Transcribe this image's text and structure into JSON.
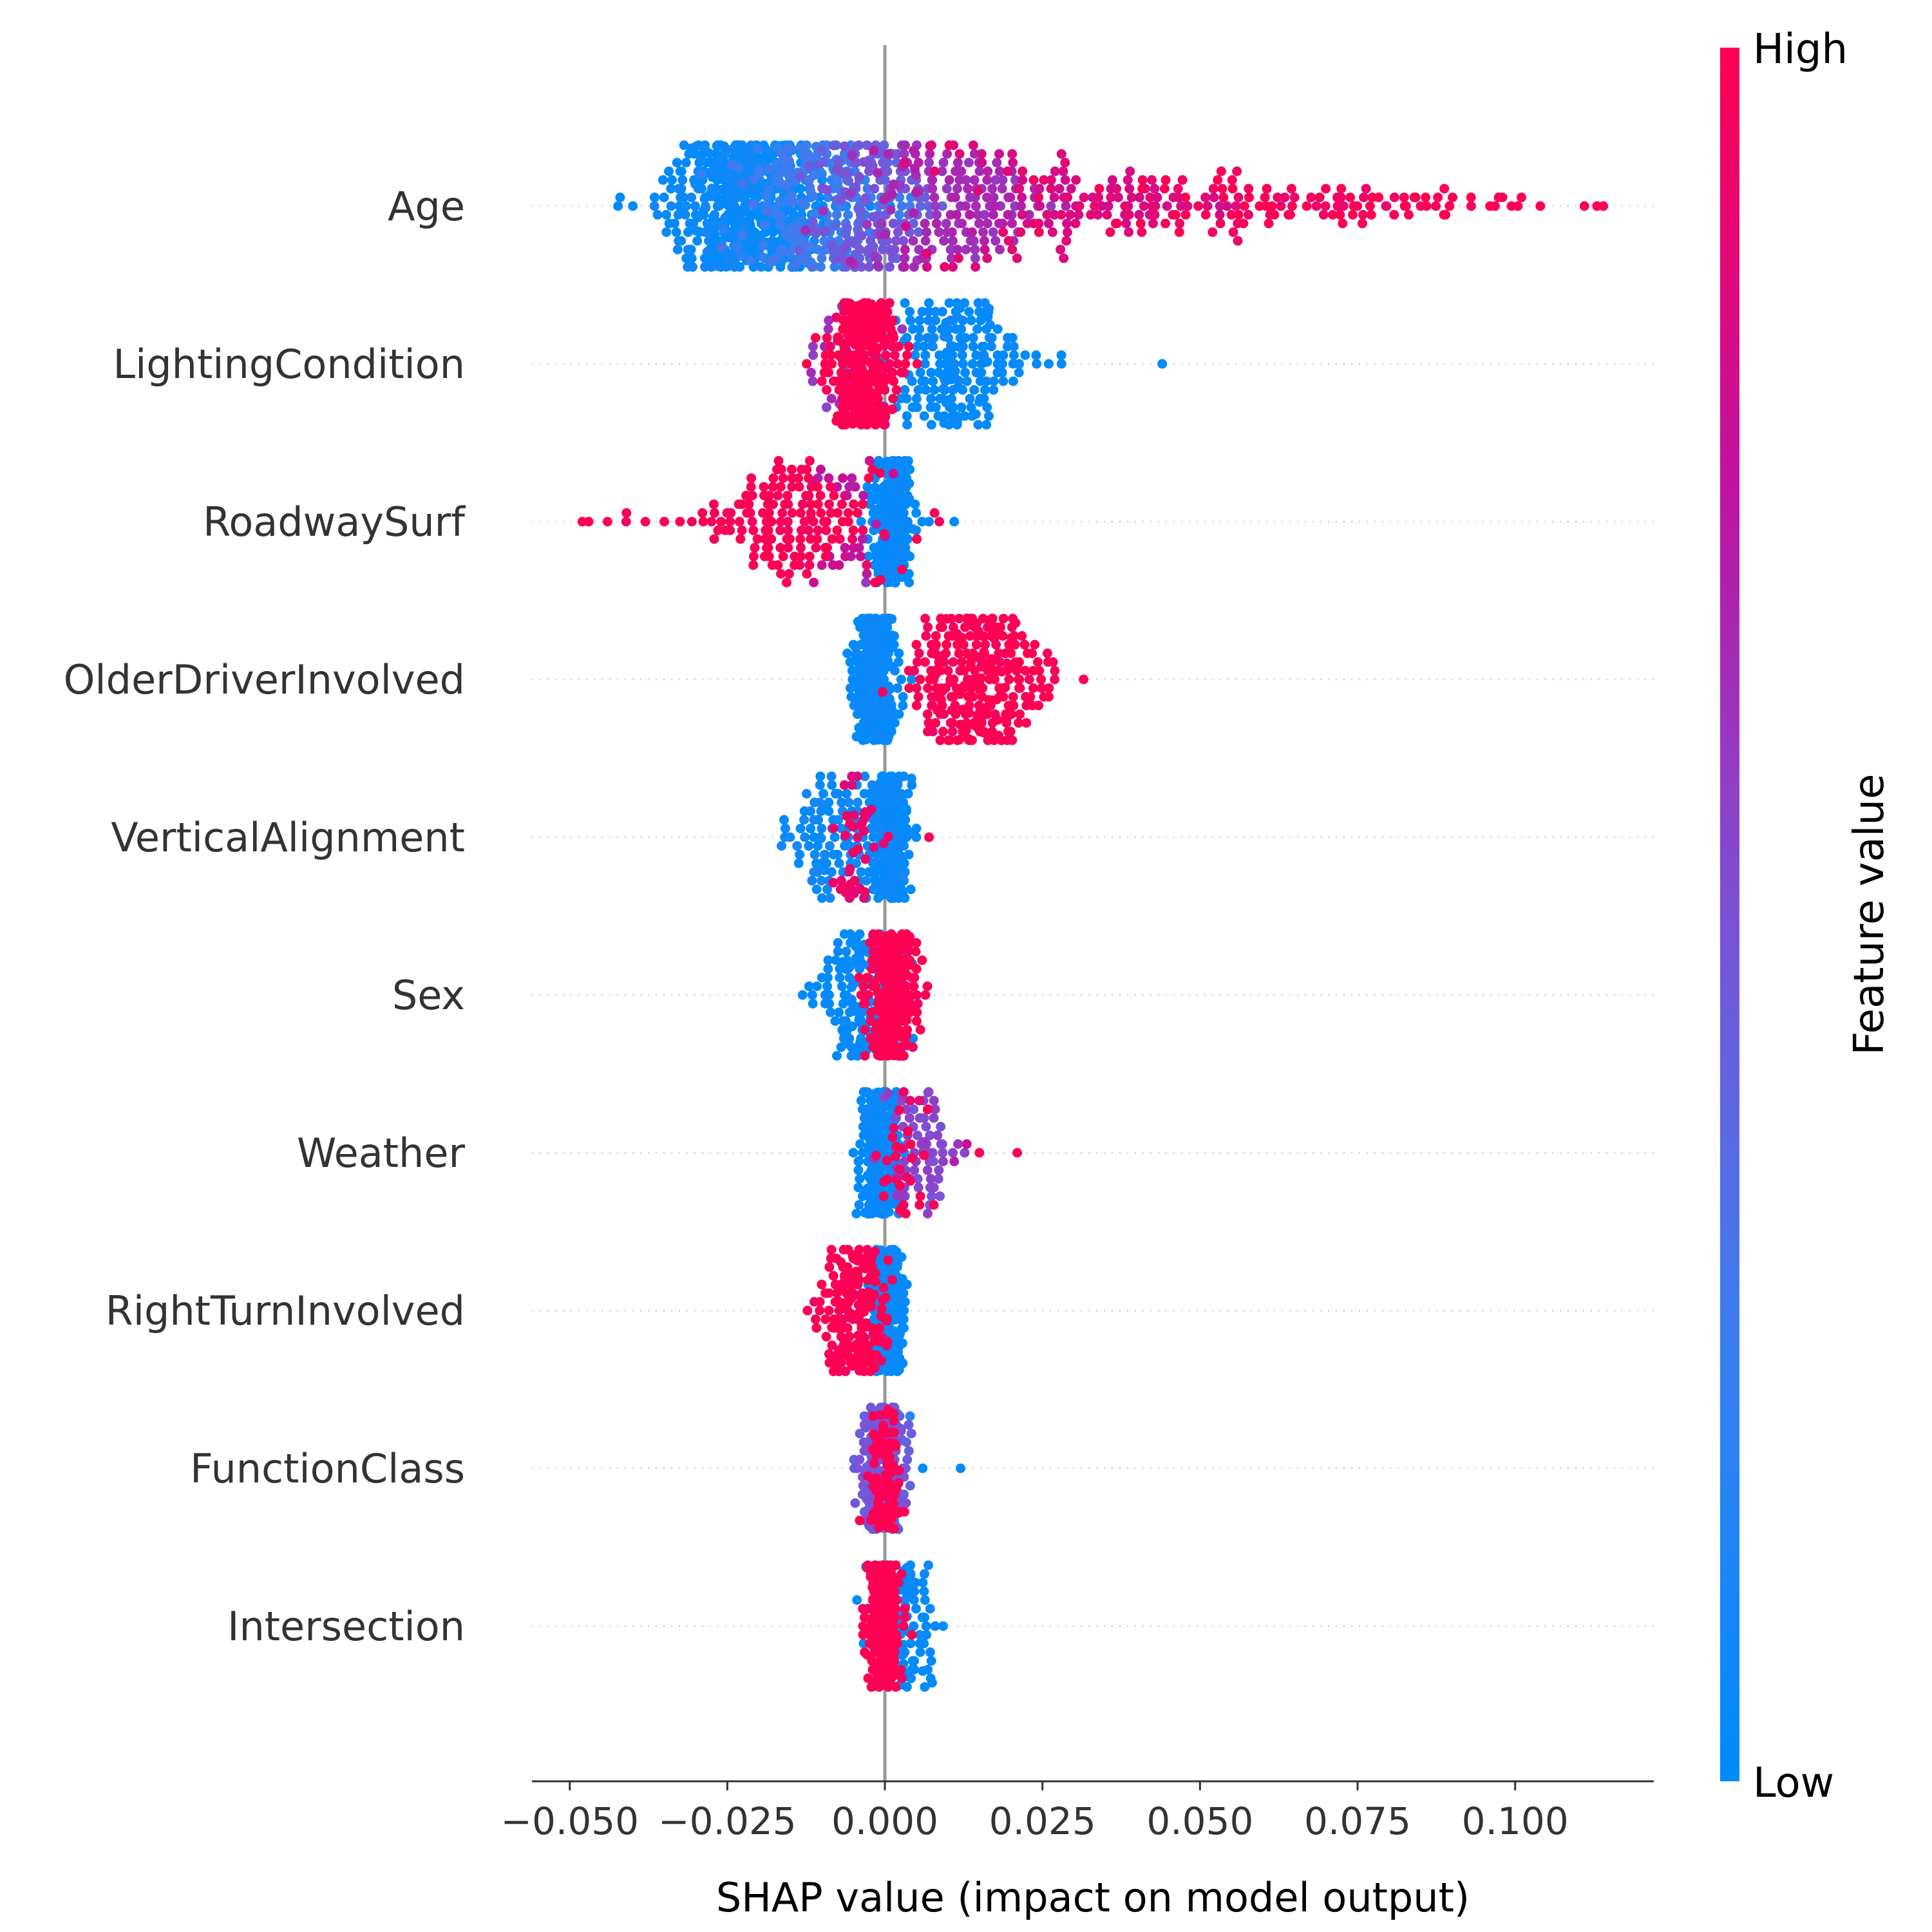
{
  "chart_data": {
    "type": "scatter",
    "subtype": "shap-beeswarm",
    "xlabel": "SHAP value (impact on model output)",
    "xlim": [
      -0.056,
      0.122
    ],
    "xticks": [
      -0.05,
      -0.025,
      0.0,
      0.025,
      0.05,
      0.075,
      0.1
    ],
    "xtick_labels": [
      "−0.050",
      "−0.025",
      "0.000",
      "0.025",
      "0.050",
      "0.075",
      "0.100"
    ],
    "zero_line": 0.0,
    "colorbar": {
      "label": "Feature value",
      "high_label": "High",
      "low_label": "Low",
      "low_color": "#008bfb",
      "high_color": "#ff0052"
    },
    "features": [
      {
        "name": "Age",
        "clusters": [
          {
            "center": -0.022,
            "spread": 0.006,
            "count": 520,
            "color": 0.02
          },
          {
            "center": -0.012,
            "spread": 0.006,
            "count": 200,
            "color": 0.25
          },
          {
            "center": -0.003,
            "spread": 0.005,
            "count": 150,
            "color": 0.45
          },
          {
            "center": 0.01,
            "spread": 0.008,
            "count": 150,
            "color": 0.65
          },
          {
            "center": 0.03,
            "spread": 0.012,
            "count": 120,
            "color": 0.85
          },
          {
            "center": 0.06,
            "spread": 0.015,
            "count": 90,
            "color": 0.97
          },
          {
            "center": 0.085,
            "spread": 0.007,
            "count": 20,
            "color": 1.0
          }
        ],
        "points": [
          {
            "x": -0.04,
            "color": 0.0
          },
          {
            "x": 0.093,
            "color": 1.0
          },
          {
            "x": 0.096,
            "color": 1.0
          },
          {
            "x": 0.098,
            "color": 1.0
          },
          {
            "x": 0.101,
            "color": 1.0
          },
          {
            "x": 0.104,
            "color": 1.0
          },
          {
            "x": 0.111,
            "color": 1.0
          },
          {
            "x": 0.113,
            "color": 1.0
          },
          {
            "x": 0.114,
            "color": 1.0
          }
        ]
      },
      {
        "name": "LightingCondition",
        "clusters": [
          {
            "center": -0.003,
            "spread": 0.0025,
            "count": 320,
            "color": 1.0
          },
          {
            "center": -0.005,
            "spread": 0.003,
            "count": 40,
            "color": 0.6
          },
          {
            "center": 0.011,
            "spread": 0.005,
            "count": 200,
            "color": 0.0
          }
        ],
        "points": [
          {
            "x": -0.011,
            "color": 1.0
          },
          {
            "x": -0.01,
            "color": 1.0
          },
          {
            "x": 0.024,
            "color": 0.0
          },
          {
            "x": 0.026,
            "color": 0.0
          },
          {
            "x": 0.028,
            "color": 0.0
          },
          {
            "x": 0.044,
            "color": 0.0
          }
        ]
      },
      {
        "name": "RoadwaySurf",
        "clusters": [
          {
            "center": 0.0012,
            "spread": 0.0015,
            "count": 300,
            "color": 0.0
          },
          {
            "center": -0.014,
            "spread": 0.008,
            "count": 150,
            "color": 1.0
          },
          {
            "center": -0.006,
            "spread": 0.004,
            "count": 30,
            "color": 0.75
          }
        ],
        "points": [
          {
            "x": -0.048,
            "color": 1.0
          },
          {
            "x": -0.047,
            "color": 1.0
          },
          {
            "x": -0.044,
            "color": 1.0
          },
          {
            "x": -0.041,
            "color": 1.0
          },
          {
            "x": -0.038,
            "color": 1.0
          },
          {
            "x": -0.035,
            "color": 1.0
          },
          {
            "x": -0.003,
            "color": 0.6
          },
          {
            "x": 0.007,
            "color": 0.0
          },
          {
            "x": 0.011,
            "color": 0.0
          }
        ]
      },
      {
        "name": "OlderDriverInvolved",
        "clusters": [
          {
            "center": -0.0015,
            "spread": 0.0015,
            "count": 420,
            "color": 0.0
          },
          {
            "center": 0.015,
            "spread": 0.005,
            "count": 280,
            "color": 1.0
          }
        ],
        "points": [
          {
            "x": -0.005,
            "color": 0.0
          },
          {
            "x": 0.005,
            "color": 1.0
          },
          {
            "x": 0.026,
            "color": 1.0
          }
        ]
      },
      {
        "name": "VerticalAlignment",
        "clusters": [
          {
            "center": 0.0008,
            "spread": 0.0015,
            "count": 300,
            "color": 0.0
          },
          {
            "center": -0.008,
            "spread": 0.004,
            "count": 100,
            "color": 0.05
          },
          {
            "center": -0.004,
            "spread": 0.002,
            "count": 40,
            "color": 0.9
          }
        ],
        "points": [
          {
            "x": -0.016,
            "color": 0.0
          },
          {
            "x": 0.003,
            "color": 0.0
          },
          {
            "x": 0.005,
            "color": 0.0
          },
          {
            "x": 0.007,
            "color": 1.0
          }
        ]
      },
      {
        "name": "Sex",
        "clusters": [
          {
            "center": 0.001,
            "spread": 0.0018,
            "count": 280,
            "color": 1.0
          },
          {
            "center": -0.004,
            "spread": 0.003,
            "count": 160,
            "color": 0.0
          }
        ],
        "points": [
          {
            "x": -0.01,
            "color": 0.0
          },
          {
            "x": -0.009,
            "color": 0.0
          },
          {
            "x": 0.005,
            "color": 1.0
          }
        ]
      },
      {
        "name": "Weather",
        "clusters": [
          {
            "center": -0.0008,
            "spread": 0.0015,
            "count": 300,
            "color": 0.0
          },
          {
            "center": 0.006,
            "spread": 0.003,
            "count": 70,
            "color": 0.55
          },
          {
            "center": 0.003,
            "spread": 0.002,
            "count": 30,
            "color": 0.95
          }
        ],
        "points": [
          {
            "x": -0.005,
            "color": 0.0
          },
          {
            "x": 0.011,
            "color": 0.7
          },
          {
            "x": 0.013,
            "color": 0.8
          },
          {
            "x": 0.015,
            "color": 1.0
          },
          {
            "x": 0.021,
            "color": 1.0
          }
        ]
      },
      {
        "name": "RightTurnInvolved",
        "clusters": [
          {
            "center": 0.0005,
            "spread": 0.0012,
            "count": 280,
            "color": 0.0
          },
          {
            "center": -0.005,
            "spread": 0.0025,
            "count": 200,
            "color": 1.0
          }
        ],
        "points": [
          {
            "x": -0.011,
            "color": 1.0
          },
          {
            "x": 0.003,
            "color": 0.0
          },
          {
            "x": 0.0035,
            "color": 0.0
          }
        ]
      },
      {
        "name": "FunctionClass",
        "clusters": [
          {
            "center": -0.0005,
            "spread": 0.0018,
            "count": 250,
            "color": 0.45
          },
          {
            "center": 0.0005,
            "spread": 0.0015,
            "count": 100,
            "color": 1.0
          }
        ],
        "points": [
          {
            "x": -0.004,
            "color": 1.0
          },
          {
            "x": 0.004,
            "color": 0.2
          },
          {
            "x": 0.006,
            "color": 0.0
          },
          {
            "x": 0.012,
            "color": 0.0
          }
        ]
      },
      {
        "name": "Intersection",
        "clusters": [
          {
            "center": -0.0003,
            "spread": 0.0012,
            "count": 280,
            "color": 1.0
          },
          {
            "center": 0.003,
            "spread": 0.0025,
            "count": 120,
            "color": 0.0
          }
        ],
        "points": [
          {
            "x": -0.003,
            "color": 0.0
          },
          {
            "x": 0.006,
            "color": 0.0
          },
          {
            "x": 0.0075,
            "color": 0.0
          }
        ]
      }
    ]
  }
}
